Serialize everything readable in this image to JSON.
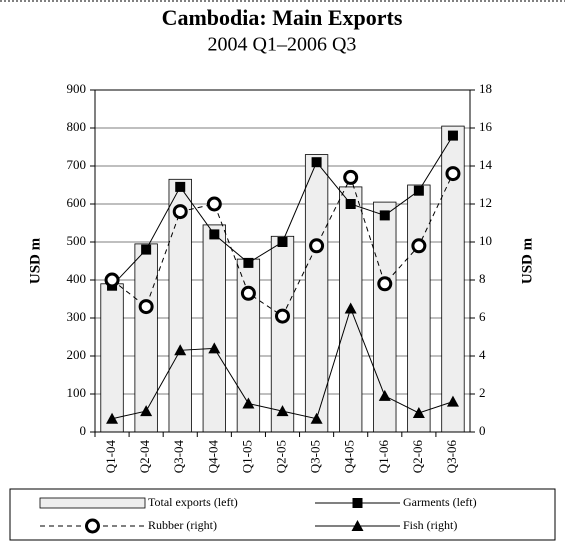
{
  "chart_data": {
    "type": "combo",
    "title": "Cambodia: Main Exports",
    "subtitle": "2004 Q1–2006 Q3",
    "ylabel": "USD m",
    "y2label": "USD m",
    "categories": [
      "Q1-04",
      "Q2-04",
      "Q3-04",
      "Q4-04",
      "Q1-05",
      "Q2-05",
      "Q3-05",
      "Q4-05",
      "Q1-06",
      "Q2-06",
      "Q3-06"
    ],
    "ylim": [
      0,
      900
    ],
    "yticks": [
      0,
      100,
      200,
      300,
      400,
      500,
      600,
      700,
      800,
      900
    ],
    "y2lim": [
      0,
      18
    ],
    "y2ticks": [
      0,
      2,
      4,
      6,
      8,
      10,
      12,
      14,
      16,
      18
    ],
    "grid": true,
    "series": [
      {
        "name": "Total exports (left)",
        "type": "bar",
        "color": "#eeeeee",
        "axis": "y",
        "values": [
          390,
          495,
          665,
          545,
          455,
          515,
          730,
          645,
          605,
          650,
          805
        ]
      },
      {
        "name": "Garments (left)",
        "type": "line",
        "marker": "square",
        "dashed": false,
        "color": "#000000",
        "axis": "y",
        "values": [
          385,
          480,
          645,
          520,
          445,
          500,
          710,
          600,
          570,
          635,
          780
        ]
      },
      {
        "name": "Rubber (right)",
        "type": "line",
        "marker": "circle",
        "dashed": true,
        "color": "#000000",
        "axis": "y2",
        "values": [
          8.0,
          6.6,
          11.6,
          12.0,
          7.3,
          6.1,
          9.8,
          13.4,
          7.8,
          9.8,
          13.6
        ]
      },
      {
        "name": "Fish (right)",
        "type": "line",
        "marker": "triangle",
        "dashed": false,
        "color": "#000000",
        "axis": "y2",
        "values": [
          0.7,
          1.1,
          4.3,
          4.4,
          1.5,
          1.1,
          0.7,
          6.5,
          1.9,
          1.0,
          1.6
        ]
      }
    ]
  }
}
